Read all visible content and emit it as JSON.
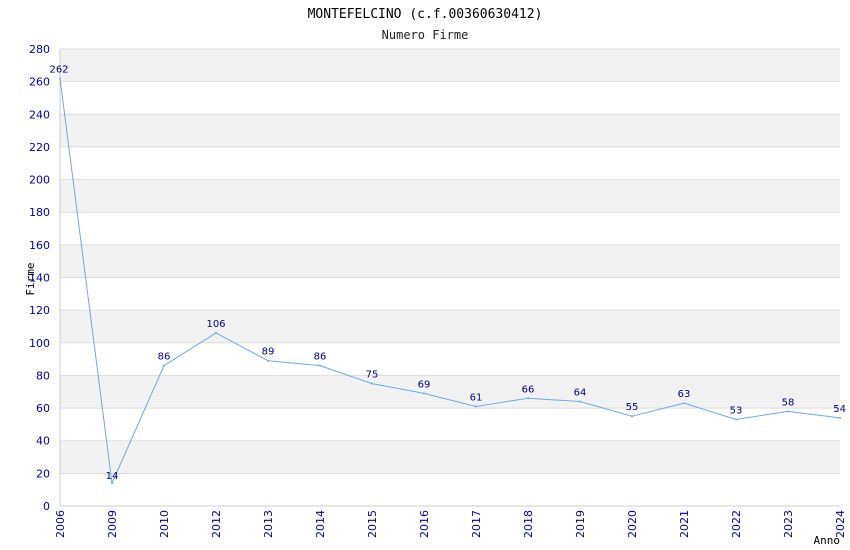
{
  "chart_data": {
    "type": "line",
    "title": "MONTEFELCINO (c.f.00360630412)",
    "subtitle": "Numero Firme",
    "xlabel": "Anno",
    "ylabel": "Firme",
    "categories": [
      "2006",
      "2009",
      "2010",
      "2012",
      "2013",
      "2014",
      "2015",
      "2016",
      "2017",
      "2018",
      "2019",
      "2020",
      "2021",
      "2022",
      "2023",
      "2024"
    ],
    "series": [
      {
        "values": [
          262,
          14,
          86,
          106,
          89,
          86,
          75,
          69,
          61,
          66,
          64,
          55,
          63,
          53,
          58,
          54
        ]
      }
    ],
    "ylim": [
      0,
      280
    ],
    "yticks": [
      0,
      20,
      40,
      60,
      80,
      100,
      120,
      140,
      160,
      180,
      200,
      220,
      240,
      260,
      280
    ],
    "grid": true,
    "colors": {
      "line": "#6fa8e8",
      "tick_text": "#0000aa",
      "data_label": "#000080",
      "band": "#f2f2f2",
      "grid": "#dddddd",
      "axis": "#cccccc"
    }
  }
}
